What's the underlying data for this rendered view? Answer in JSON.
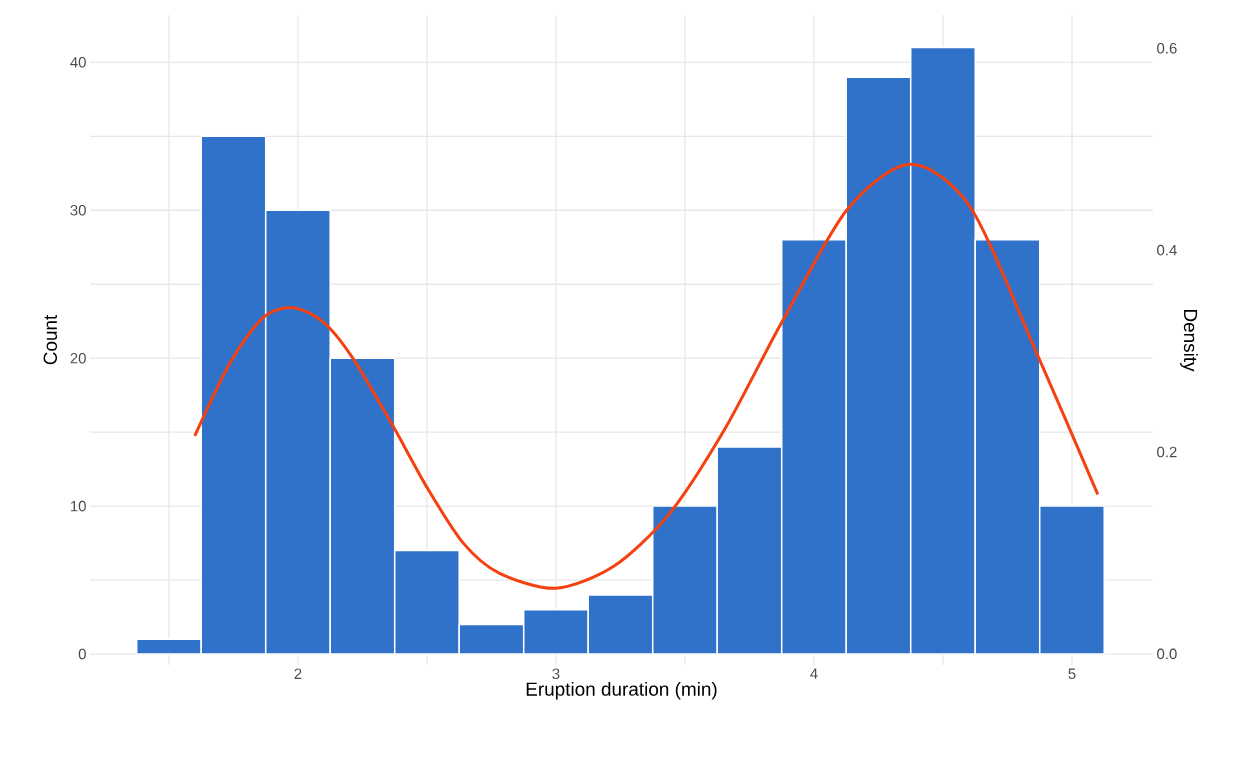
{
  "chart_data": {
    "type": "histogram",
    "xlabel": "Eruption duration (min)",
    "ylabel": "Count",
    "y2label": "Density",
    "series": [
      {
        "color": "#3072c9",
        "bins": [
          1.375,
          1.625,
          1.875,
          2.125,
          2.375,
          2.625,
          2.875,
          3.125,
          3.375,
          3.625,
          3.875,
          4.125,
          4.375,
          4.625,
          4.875,
          5.125
        ],
        "values": [
          1,
          35,
          30,
          20,
          7,
          2,
          3,
          4,
          10,
          14,
          28,
          39,
          41,
          28,
          10
        ]
      },
      {
        "type": "line",
        "axis": "y2",
        "color": "#f5400f",
        "x": [
          1.6,
          1.736,
          1.864,
          1.98,
          2.097,
          2.21,
          2.37,
          2.5,
          2.64,
          2.78,
          3.0,
          3.225,
          3.44,
          3.655,
          3.87,
          4.128,
          4.372,
          4.605,
          4.86,
          5.1
        ],
        "values": [
          0.216,
          0.288,
          0.333,
          0.343,
          0.329,
          0.294,
          0.225,
          0.165,
          0.11,
          0.08,
          0.065,
          0.087,
          0.139,
          0.223,
          0.326,
          0.44,
          0.485,
          0.443,
          0.3,
          0.158
        ]
      }
    ],
    "xlim": [
      1.194,
      5.314
    ],
    "ylim": [
      -0.74,
      43.2
    ],
    "y2lim": [
      -0.011,
      0.633
    ],
    "xticks": [
      {
        "value": 1.5,
        "label": null
      },
      2,
      {
        "value": 2.5,
        "label": null
      },
      3,
      {
        "value": 3.5,
        "label": null
      },
      4,
      {
        "value": 4.5,
        "label": null
      },
      5
    ],
    "yticks": [
      0,
      {
        "value": 5,
        "label": null
      },
      10,
      {
        "value": 15,
        "label": null
      },
      20,
      {
        "value": 25,
        "label": null
      },
      30,
      {
        "value": 35,
        "label": null
      },
      40
    ],
    "y2ticks": [
      {
        "value": 0,
        "label": "0.0"
      },
      0.2,
      0.4,
      0.6
    ],
    "grid": true
  }
}
